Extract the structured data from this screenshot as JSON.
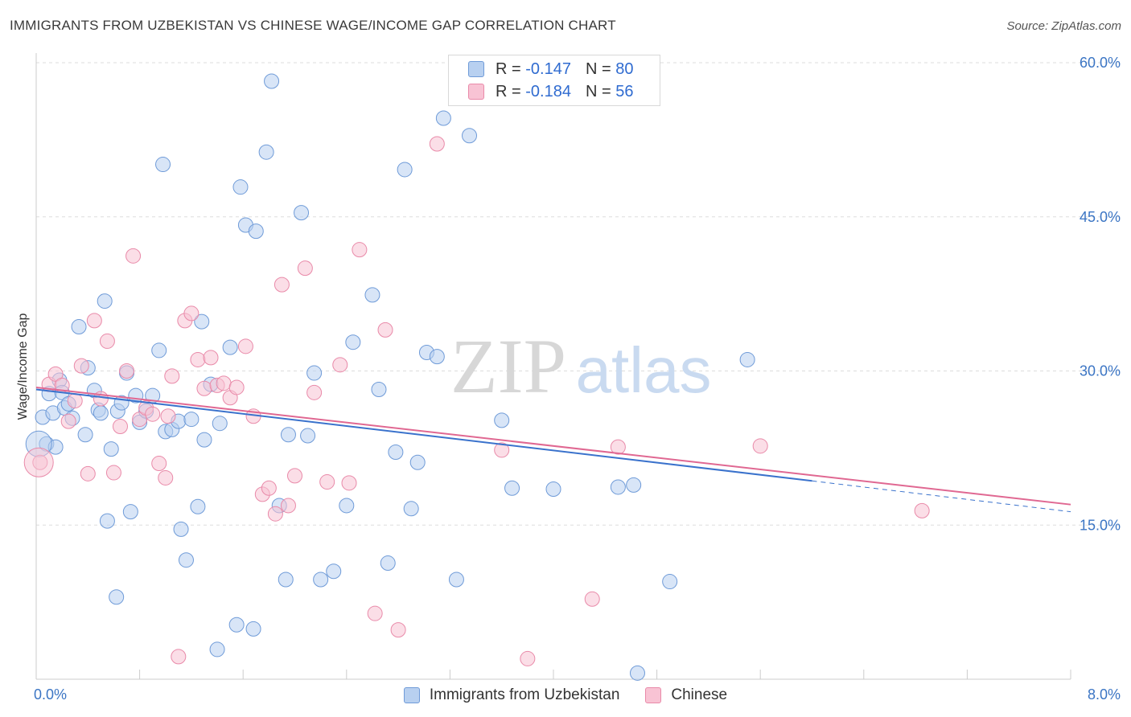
{
  "title": "IMMIGRANTS FROM UZBEKISTAN VS CHINESE WAGE/INCOME GAP CORRELATION CHART",
  "source": "Source: ZipAtlas.com",
  "watermark": {
    "zip": "ZIP",
    "atlas": "atlas"
  },
  "colors": {
    "blue_fill": "#b8d0f0",
    "blue_stroke": "#6f9bd8",
    "blue_line": "#3a72cc",
    "pink_fill": "#f8c3d4",
    "pink_stroke": "#e98aa9",
    "pink_line": "#e06892",
    "tick": "#3b75c4",
    "grid": "#dddddd"
  },
  "legend": {
    "r_label": "R =",
    "n_label": "N =",
    "rows": [
      {
        "r": "-0.147",
        "n": "80",
        "series": "blue"
      },
      {
        "r": "-0.184",
        "n": "56",
        "series": "pink"
      }
    ]
  },
  "bottom_legend": {
    "items": [
      {
        "label": "Immigrants from Uzbekistan",
        "series": "blue"
      },
      {
        "label": "Chinese",
        "series": "pink"
      }
    ]
  },
  "chart_data": {
    "type": "scatter",
    "title": "IMMIGRANTS FROM UZBEKISTAN VS CHINESE WAGE/INCOME GAP CORRELATION CHART",
    "xlabel": "",
    "ylabel": "Wage/Income Gap",
    "xlim": [
      0,
      8
    ],
    "ylim": [
      0,
      60
    ],
    "x_tick_labels": [
      "0.0%",
      "8.0%"
    ],
    "y_ticks": [
      {
        "value": 15,
        "label": "15.0%"
      },
      {
        "value": 30,
        "label": "30.0%"
      },
      {
        "value": 45,
        "label": "45.0%"
      },
      {
        "value": 60,
        "label": "60.0%"
      }
    ],
    "grid": true,
    "legend_position": "top-center",
    "series": [
      {
        "name": "Immigrants from Uzbekistan",
        "color": "#6f9bd8",
        "r": -0.147,
        "n": 80,
        "trend": {
          "x0": 0.0,
          "y0": 28.2,
          "x1": 6.0,
          "y1": 19.3,
          "dashed_to_x": 8.0,
          "dashed_to_y": 16.3
        },
        "points": [
          [
            0.05,
            25.5
          ],
          [
            0.08,
            22.9
          ],
          [
            0.1,
            27.8
          ],
          [
            0.13,
            25.9
          ],
          [
            0.15,
            22.6
          ],
          [
            0.18,
            29.1
          ],
          [
            0.2,
            27.9
          ],
          [
            0.22,
            26.4
          ],
          [
            0.25,
            26.8
          ],
          [
            0.28,
            25.4
          ],
          [
            0.33,
            34.3
          ],
          [
            0.38,
            23.8
          ],
          [
            0.4,
            30.3
          ],
          [
            0.45,
            28.1
          ],
          [
            0.48,
            26.2
          ],
          [
            0.5,
            25.9
          ],
          [
            0.53,
            36.8
          ],
          [
            0.58,
            22.4
          ],
          [
            0.63,
            26.1
          ],
          [
            0.66,
            26.9
          ],
          [
            0.7,
            29.8
          ],
          [
            0.73,
            16.3
          ],
          [
            0.77,
            27.6
          ],
          [
            0.8,
            25.0
          ],
          [
            0.85,
            26.1
          ],
          [
            0.9,
            27.6
          ],
          [
            0.95,
            32.0
          ],
          [
            1.0,
            24.1
          ],
          [
            1.05,
            24.3
          ],
          [
            1.1,
            25.1
          ],
          [
            1.12,
            14.6
          ],
          [
            1.2,
            25.3
          ],
          [
            1.25,
            16.8
          ],
          [
            1.3,
            23.3
          ],
          [
            1.35,
            28.7
          ],
          [
            1.42,
            24.9
          ],
          [
            1.5,
            32.3
          ],
          [
            1.58,
            47.9
          ],
          [
            1.62,
            44.2
          ],
          [
            1.7,
            43.6
          ],
          [
            1.78,
            51.3
          ],
          [
            1.82,
            58.2
          ],
          [
            1.88,
            16.9
          ],
          [
            1.93,
            9.7
          ],
          [
            2.05,
            45.4
          ],
          [
            2.1,
            23.7
          ],
          [
            2.15,
            29.8
          ],
          [
            2.2,
            9.7
          ],
          [
            2.3,
            10.5
          ],
          [
            2.45,
            32.8
          ],
          [
            2.6,
            37.4
          ],
          [
            2.65,
            28.2
          ],
          [
            2.72,
            11.3
          ],
          [
            2.78,
            22.1
          ],
          [
            2.85,
            49.6
          ],
          [
            2.9,
            16.6
          ],
          [
            2.95,
            21.1
          ],
          [
            3.02,
            31.8
          ],
          [
            3.15,
            54.6
          ],
          [
            3.1,
            31.4
          ],
          [
            3.25,
            9.7
          ],
          [
            3.35,
            52.9
          ],
          [
            3.6,
            25.2
          ],
          [
            3.68,
            18.6
          ],
          [
            4.0,
            18.5
          ],
          [
            4.5,
            18.7
          ],
          [
            4.62,
            18.9
          ],
          [
            4.9,
            9.5
          ],
          [
            5.5,
            31.1
          ],
          [
            0.55,
            15.4
          ],
          [
            0.62,
            8.0
          ],
          [
            0.98,
            50.1
          ],
          [
            1.16,
            11.6
          ],
          [
            1.28,
            34.8
          ],
          [
            1.4,
            2.9
          ],
          [
            1.55,
            5.3
          ],
          [
            1.68,
            4.9
          ],
          [
            1.95,
            23.8
          ],
          [
            2.4,
            16.9
          ],
          [
            4.65,
            0.6
          ]
        ]
      },
      {
        "name": "Chinese",
        "color": "#e98aa9",
        "r": -0.184,
        "n": 56,
        "trend": {
          "x0": 0.0,
          "y0": 28.4,
          "x1": 8.0,
          "y1": 17.0
        },
        "points": [
          [
            0.03,
            21.1
          ],
          [
            0.1,
            28.7
          ],
          [
            0.15,
            29.7
          ],
          [
            0.2,
            28.6
          ],
          [
            0.25,
            25.1
          ],
          [
            0.3,
            27.1
          ],
          [
            0.35,
            30.5
          ],
          [
            0.4,
            20.0
          ],
          [
            0.45,
            34.9
          ],
          [
            0.5,
            27.3
          ],
          [
            0.55,
            32.9
          ],
          [
            0.6,
            20.1
          ],
          [
            0.65,
            24.6
          ],
          [
            0.7,
            30.0
          ],
          [
            0.75,
            41.2
          ],
          [
            0.8,
            25.3
          ],
          [
            0.85,
            26.4
          ],
          [
            0.9,
            25.8
          ],
          [
            0.95,
            21.0
          ],
          [
            1.0,
            19.6
          ],
          [
            1.05,
            29.5
          ],
          [
            1.1,
            2.2
          ],
          [
            1.15,
            34.9
          ],
          [
            1.2,
            35.6
          ],
          [
            1.25,
            31.1
          ],
          [
            1.3,
            28.3
          ],
          [
            1.35,
            31.3
          ],
          [
            1.4,
            28.6
          ],
          [
            1.45,
            28.8
          ],
          [
            1.5,
            27.4
          ],
          [
            1.55,
            28.4
          ],
          [
            1.62,
            32.4
          ],
          [
            1.68,
            25.6
          ],
          [
            1.75,
            18.0
          ],
          [
            1.8,
            18.6
          ],
          [
            1.85,
            16.1
          ],
          [
            1.9,
            38.4
          ],
          [
            1.95,
            16.9
          ],
          [
            2.0,
            19.8
          ],
          [
            2.08,
            40.0
          ],
          [
            2.15,
            27.9
          ],
          [
            2.25,
            19.2
          ],
          [
            2.35,
            30.6
          ],
          [
            2.42,
            19.1
          ],
          [
            2.5,
            41.8
          ],
          [
            2.62,
            6.4
          ],
          [
            2.7,
            34.0
          ],
          [
            2.8,
            4.8
          ],
          [
            3.1,
            52.1
          ],
          [
            3.6,
            22.3
          ],
          [
            3.8,
            2.0
          ],
          [
            4.3,
            7.8
          ],
          [
            4.5,
            22.6
          ],
          [
            5.6,
            22.7
          ],
          [
            6.85,
            16.4
          ],
          [
            1.02,
            25.6
          ]
        ]
      }
    ]
  }
}
